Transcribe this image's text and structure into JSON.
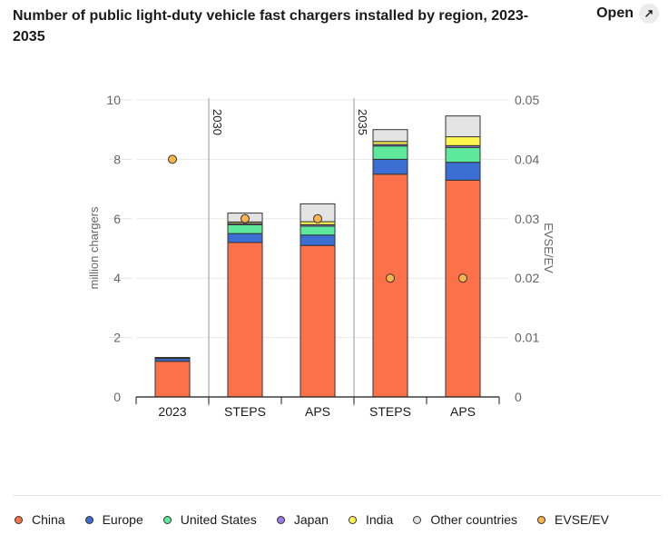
{
  "header": {
    "title": "Number of public light-duty vehicle fast chargers installed by region, 2023-2035",
    "open_label": "Open",
    "open_icon": "external-arrow-icon"
  },
  "chart_data": {
    "type": "bar",
    "stacked": true,
    "categories": [
      "2023",
      "STEPS",
      "APS",
      "STEPS",
      "APS"
    ],
    "groups": [
      {
        "label": "",
        "categories": [
          0
        ]
      },
      {
        "label": "2030",
        "categories": [
          1,
          2
        ]
      },
      {
        "label": "2035",
        "categories": [
          3,
          4
        ]
      }
    ],
    "ylabel": "million chargers",
    "ylim": [
      0,
      10
    ],
    "yticks": [
      "0",
      "2",
      "4",
      "6",
      "8",
      "10"
    ],
    "y2label": "EVSE/EV",
    "y2lim": [
      0,
      0.05
    ],
    "y2ticks": [
      "0",
      "0.01",
      "0.02",
      "0.03",
      "0.04",
      "0.05"
    ],
    "grid": true,
    "legend_position": "bottom",
    "series": [
      {
        "name": "China",
        "color": "#ff7149",
        "values": [
          1.2,
          5.2,
          5.1,
          7.5,
          7.3
        ]
      },
      {
        "name": "Europe",
        "color": "#3b6fd4",
        "values": [
          0.1,
          0.3,
          0.35,
          0.5,
          0.6
        ]
      },
      {
        "name": "United States",
        "color": "#5ee89b",
        "values": [
          0.01,
          0.3,
          0.3,
          0.45,
          0.5
        ]
      },
      {
        "name": "Japan",
        "color": "#9b79e0",
        "values": [
          0.005,
          0.04,
          0.05,
          0.05,
          0.06
        ]
      },
      {
        "name": "India",
        "color": "#fff64f",
        "values": [
          0.005,
          0.05,
          0.1,
          0.1,
          0.3
        ]
      },
      {
        "name": "Other countries",
        "color": "#e3e3e3",
        "values": [
          0.01,
          0.3,
          0.6,
          0.4,
          0.7
        ]
      }
    ],
    "line_series": {
      "name": "EVSE/EV",
      "color": "#f9b54c",
      "axis": "right",
      "values": [
        0.04,
        0.03,
        0.03,
        0.02,
        0.02
      ]
    }
  }
}
